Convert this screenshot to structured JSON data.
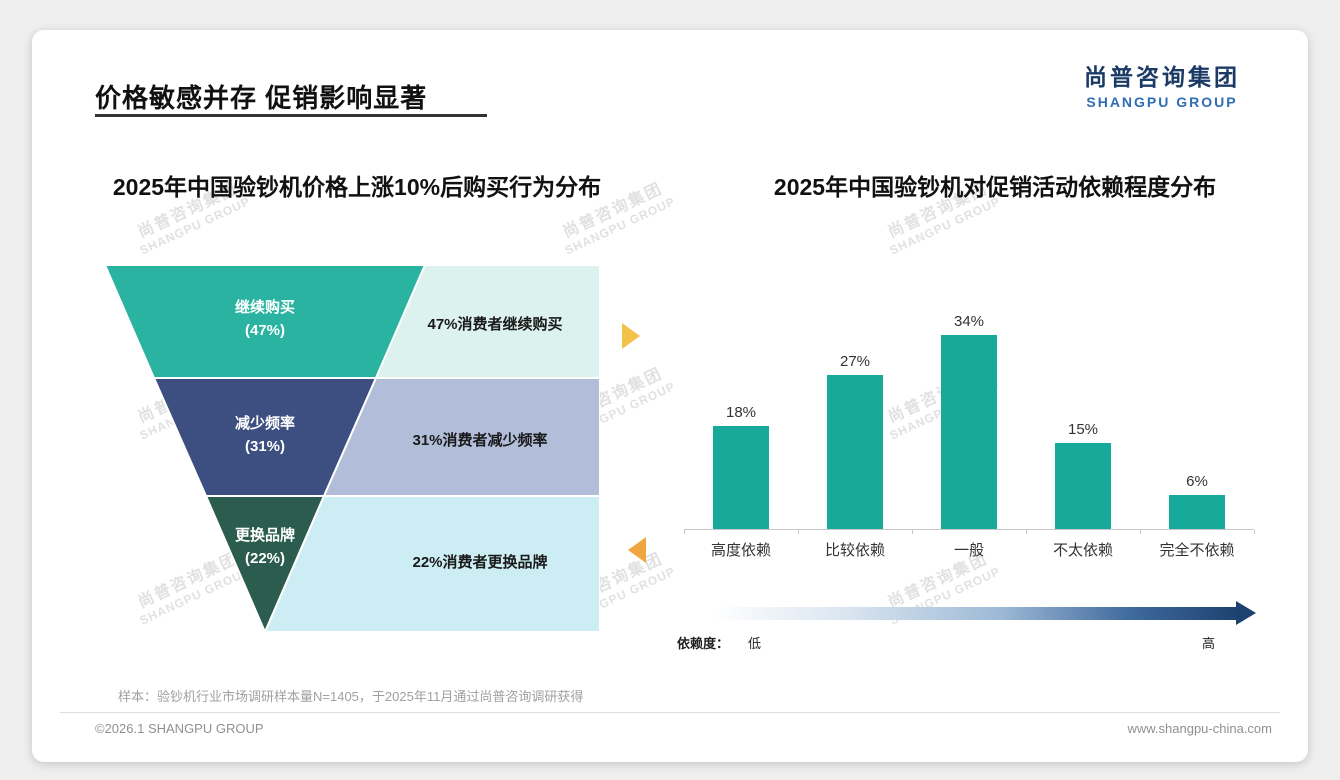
{
  "slide": {
    "title": "价格敏感并存 促销影响显著",
    "logo": {
      "cn": "尚普咨询集团",
      "en": "SHANGPU GROUP"
    },
    "note": "样本：验钞机行业市场调研样本量N=1405，于2025年11月通过尚普咨询调研获得",
    "footer_left": "©2026.1 SHANGPU GROUP",
    "footer_right": "www.shangpu-china.com"
  },
  "watermark": {
    "line1": "尚普咨询集团",
    "line2": "SHANGPU GROUP"
  },
  "chart_data": [
    {
      "type": "funnel",
      "title": "2025年中国验钞机价格上涨10%后购买行为分布",
      "unit": "%",
      "segments": [
        {
          "label": "继续购买",
          "value": 47,
          "pct_label": "(47%)",
          "desc": "47%消费者继续购买",
          "color": "#2bb3a1",
          "desc_bg": "#dcf2ee"
        },
        {
          "label": "减少频率",
          "value": 31,
          "pct_label": "(31%)",
          "desc": "31%消费者减少频率",
          "color": "#3d4f81",
          "desc_bg": "#b2bdda"
        },
        {
          "label": "更换品牌",
          "value": 22,
          "pct_label": "(22%)",
          "desc": "22%消费者更换品牌",
          "color": "#2c5c4e",
          "desc_bg": "#cdedf4"
        }
      ]
    },
    {
      "type": "bar",
      "title": "2025年中国验钞机对促销活动依赖程度分布",
      "categories": [
        "高度依赖",
        "比较依赖",
        "一般",
        "不太依赖",
        "完全不依赖"
      ],
      "values": [
        18,
        27,
        34,
        15,
        6
      ],
      "value_labels": [
        "18%",
        "27%",
        "34%",
        "15%",
        "6%"
      ],
      "bar_color": "#17a99a",
      "ylim": [
        0,
        40
      ],
      "axis": {
        "label": "依赖度：",
        "low": "低",
        "high": "高"
      }
    }
  ],
  "accents": {
    "arrow_right": "#f4c24a",
    "arrow_left": "#efa63e",
    "gradient_end": "#1d4271"
  }
}
